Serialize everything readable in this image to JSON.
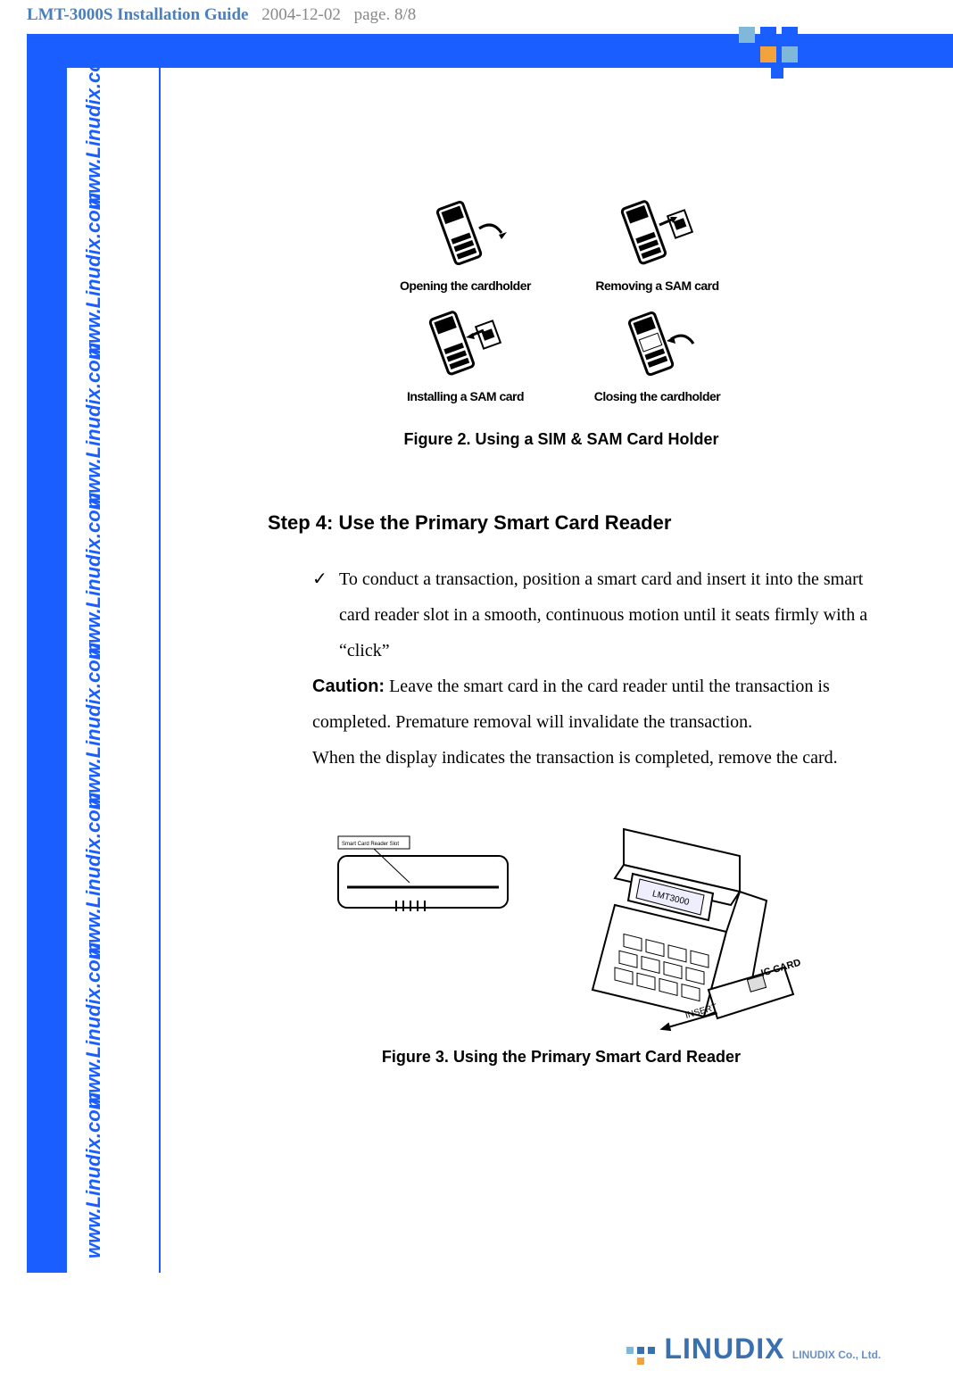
{
  "header": {
    "title": "LMT-3000S Installation Guide",
    "date": "2004-12-02",
    "page": "page. 8/8",
    "title_color": "#4a7fbf",
    "text_color": "#888888"
  },
  "theme": {
    "brand_blue": "#1a5eff",
    "accent_orange": "#f2a33c",
    "accent_cyan": "#7fb8d8"
  },
  "sidebar": {
    "text": "www.Linudix.com",
    "repeat": 8,
    "color": "#1a5eff"
  },
  "figure2": {
    "cells": [
      {
        "caption": "Opening the cardholder"
      },
      {
        "caption": "Removing a SAM card"
      },
      {
        "caption": "Installing a SAM card"
      },
      {
        "caption": "Closing the cardholder"
      }
    ],
    "label": "Figure 2. Using a SIM & SAM Card Holder"
  },
  "step4": {
    "heading": "Step 4: Use the Primary Smart Card Reader",
    "bullet": "To conduct a transaction, position a smart card and insert it into the smart card reader slot in a smooth, continuous motion until it seats firmly with a “click”",
    "caution_label": "Caution:",
    "caution_text": " Leave the smart card in the card reader until the transaction is completed. Premature removal will invalidate the transaction.",
    "after_caution": "When the display indicates the transaction is completed, remove the card."
  },
  "figure3": {
    "label": "Figure 3. Using the Primary Smart Card Reader",
    "slot_label": "Smart Card Reader Slot",
    "device_label": "LMT3000",
    "insert_label": "INSERT",
    "card_label": "IC CARD"
  },
  "footer": {
    "brand": "LINUDIX",
    "company": "LINUDIX Co., Ltd.",
    "color": "#3a6fb0"
  }
}
